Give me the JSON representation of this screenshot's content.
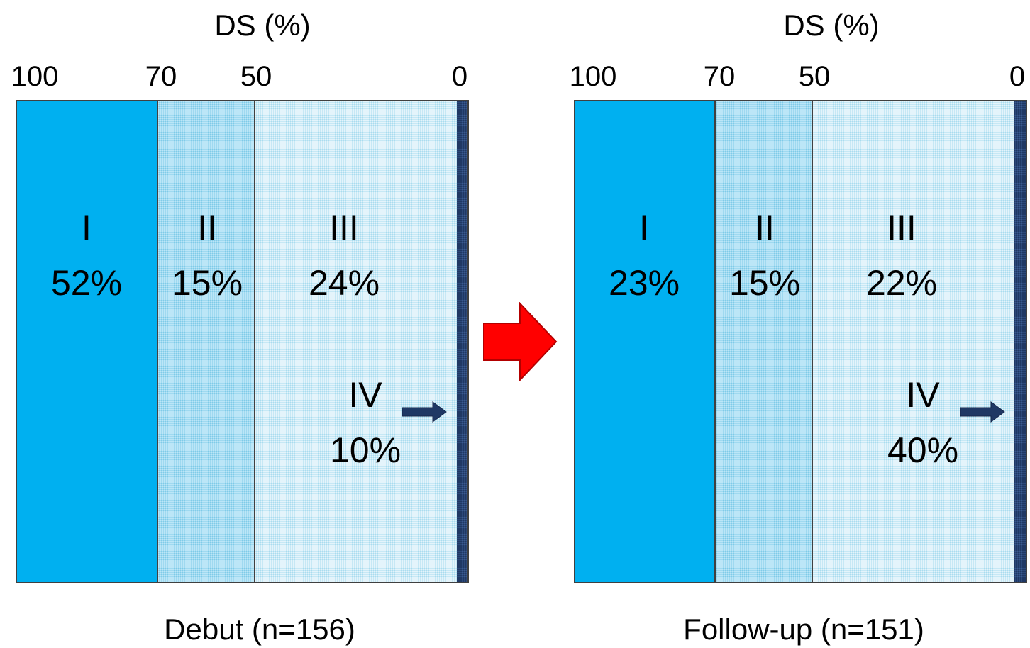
{
  "panels": [
    {
      "axis_title": "DS (%)",
      "ticks": [
        "100",
        "70",
        "50",
        "0"
      ],
      "stages": [
        {
          "roman": "I",
          "percent": "52%"
        },
        {
          "roman": "II",
          "percent": "15%"
        },
        {
          "roman": "III",
          "percent": "24%"
        },
        {
          "roman": "IV",
          "percent": "10%"
        }
      ],
      "caption": "Debut (n=156)"
    },
    {
      "axis_title": "DS (%)",
      "ticks": [
        "100",
        "70",
        "50",
        "0"
      ],
      "stages": [
        {
          "roman": "I",
          "percent": "23%"
        },
        {
          "roman": "II",
          "percent": "15%"
        },
        {
          "roman": "III",
          "percent": "22%"
        },
        {
          "roman": "IV",
          "percent": "40%"
        }
      ],
      "caption": "Follow-up (n=151)"
    }
  ],
  "colors": {
    "stage_I": "#00b0f0",
    "stage_II": "#bfe7f8",
    "stage_III": "#e4f4fb",
    "stage_IV": "#1f3864",
    "transition_arrow": "#ff0000"
  },
  "icons": {
    "transition": "right-arrow-icon",
    "stage_IV_pointer": "small-right-arrow-icon"
  }
}
